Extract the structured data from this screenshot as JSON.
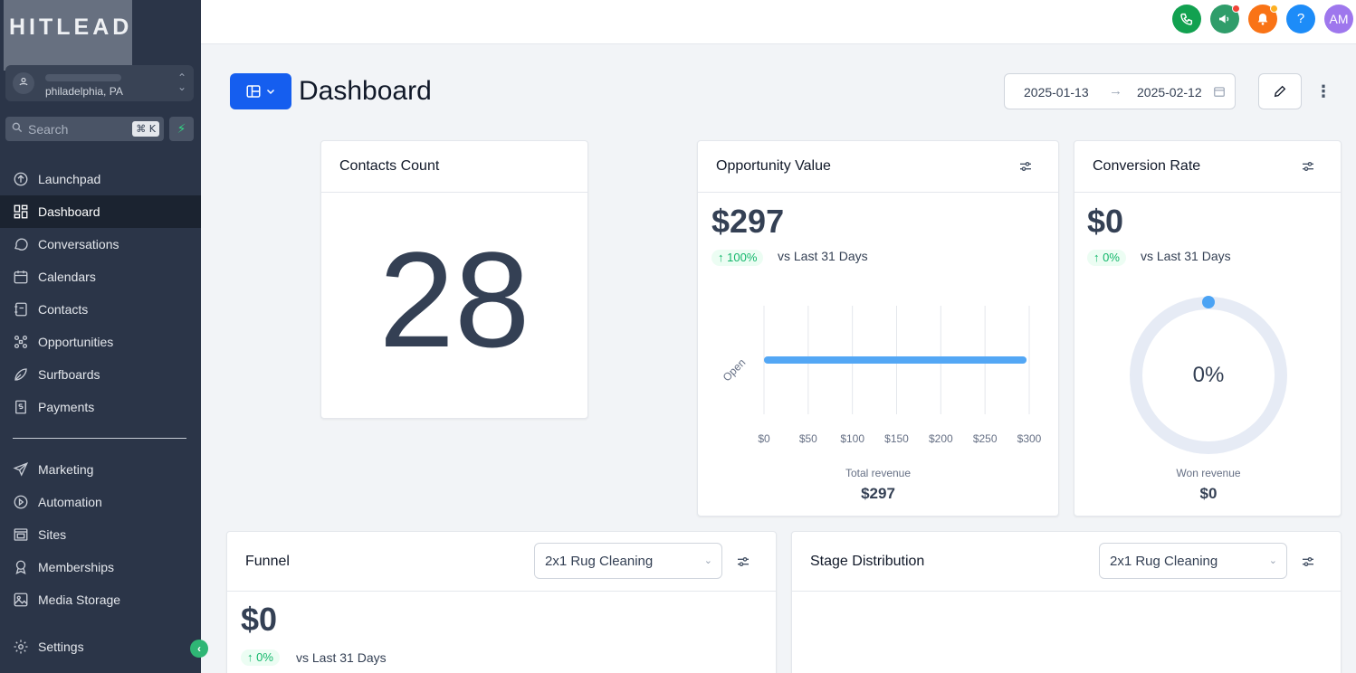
{
  "brand": {
    "logo_text": "HITLEAD"
  },
  "location": {
    "city": "philadelphia, PA"
  },
  "search": {
    "placeholder": "Search",
    "shortcut": "⌘ K"
  },
  "nav": {
    "items": [
      {
        "label": "Launchpad",
        "icon": "rocket-icon"
      },
      {
        "label": "Dashboard",
        "icon": "dashboard-icon",
        "active": true
      },
      {
        "label": "Conversations",
        "icon": "chat-icon"
      },
      {
        "label": "Calendars",
        "icon": "calendar-icon"
      },
      {
        "label": "Contacts",
        "icon": "contacts-icon"
      },
      {
        "label": "Opportunities",
        "icon": "opportunities-icon"
      },
      {
        "label": "Surfboards",
        "icon": "surfboard-icon"
      },
      {
        "label": "Payments",
        "icon": "payments-icon"
      }
    ],
    "secondary": [
      {
        "label": "Marketing",
        "icon": "send-icon"
      },
      {
        "label": "Automation",
        "icon": "automation-icon"
      },
      {
        "label": "Sites",
        "icon": "sites-icon"
      },
      {
        "label": "Memberships",
        "icon": "membership-icon"
      },
      {
        "label": "Media Storage",
        "icon": "image-icon"
      }
    ],
    "settings": {
      "label": "Settings",
      "icon": "gear-icon"
    }
  },
  "topbar": {
    "colors": {
      "phone": "#12a150",
      "announce": "#2f9d6a",
      "notify": "#f97316",
      "help": "#1d8cf8",
      "avatar": "#9e77ed"
    },
    "avatar_initials": "AM",
    "help_label": "?"
  },
  "header": {
    "title": "Dashboard",
    "date_start": "2025-01-13",
    "date_end": "2025-02-12"
  },
  "cards": {
    "contacts": {
      "title": "Contacts Count",
      "value": "28"
    },
    "opportunity": {
      "title": "Opportunity Value",
      "value": "$297",
      "change": "100%",
      "compare": "vs Last 31 Days",
      "total_label": "Total revenue",
      "total_value": "$297"
    },
    "conversion": {
      "title": "Conversion Rate",
      "value": "$0",
      "change": "0%",
      "compare": "vs Last 31 Days",
      "donut_label": "0%",
      "won_label": "Won revenue",
      "won_value": "$0"
    },
    "funnel": {
      "title": "Funnel",
      "pipeline": "2x1 Rug Cleaning",
      "value": "$0",
      "change": "0%",
      "compare": "vs Last 31 Days"
    },
    "stage": {
      "title": "Stage Distribution",
      "pipeline": "2x1 Rug Cleaning"
    }
  },
  "chart_data": {
    "type": "bar",
    "orientation": "horizontal",
    "categories": [
      "Open"
    ],
    "values": [
      297
    ],
    "xlabel": "",
    "ylabel": "",
    "xlim": [
      0,
      300
    ],
    "x_ticks": [
      "$0",
      "$50",
      "$100",
      "$150",
      "$200",
      "$250",
      "$300"
    ],
    "grid": true,
    "color": "#53a7f5"
  }
}
